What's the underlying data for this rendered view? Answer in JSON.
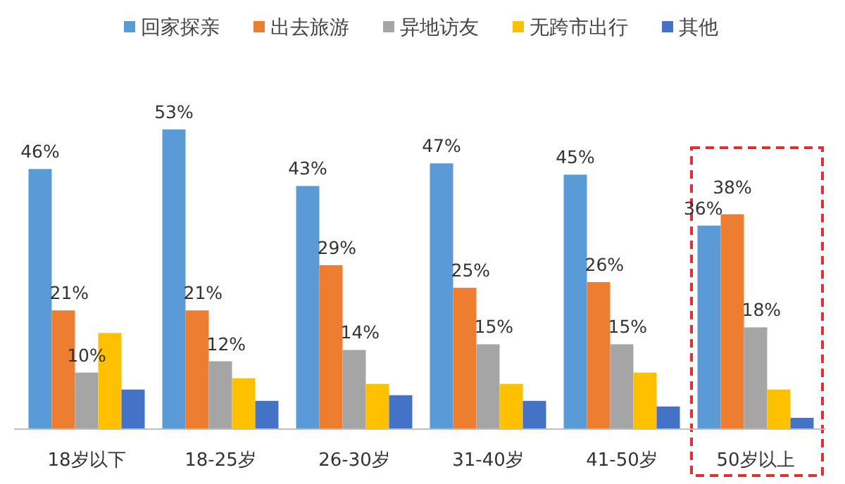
{
  "chart_data": {
    "type": "bar",
    "legend": "top",
    "categories": [
      "18岁以下",
      "18-25岁",
      "26-30岁",
      "31-40岁",
      "41-50岁",
      "50岁以上"
    ],
    "series": [
      {
        "name": "回家探亲",
        "color": "#5b9bd5",
        "values": [
          46,
          53,
          43,
          47,
          45,
          36
        ],
        "value_labels": [
          "46%",
          "53%",
          "43%",
          "47%",
          "45%",
          "36%"
        ]
      },
      {
        "name": "出去旅游",
        "color": "#ed7d31",
        "values": [
          21,
          21,
          29,
          25,
          26,
          38
        ],
        "value_labels": [
          "21%",
          "21%",
          "29%",
          "25%",
          "26%",
          "38%"
        ]
      },
      {
        "name": "异地访友",
        "color": "#a5a5a5",
        "values": [
          10,
          12,
          14,
          15,
          15,
          18
        ],
        "value_labels": [
          "10%",
          "12%",
          "14%",
          "15%",
          "15%",
          "18%"
        ]
      },
      {
        "name": "无跨市出行",
        "color": "#ffc000",
        "values": [
          17,
          9,
          8,
          8,
          10,
          7
        ]
      },
      {
        "name": "其他",
        "color": "#4472c4",
        "values": [
          7,
          5,
          6,
          5,
          4,
          2
        ]
      }
    ]
  }
}
